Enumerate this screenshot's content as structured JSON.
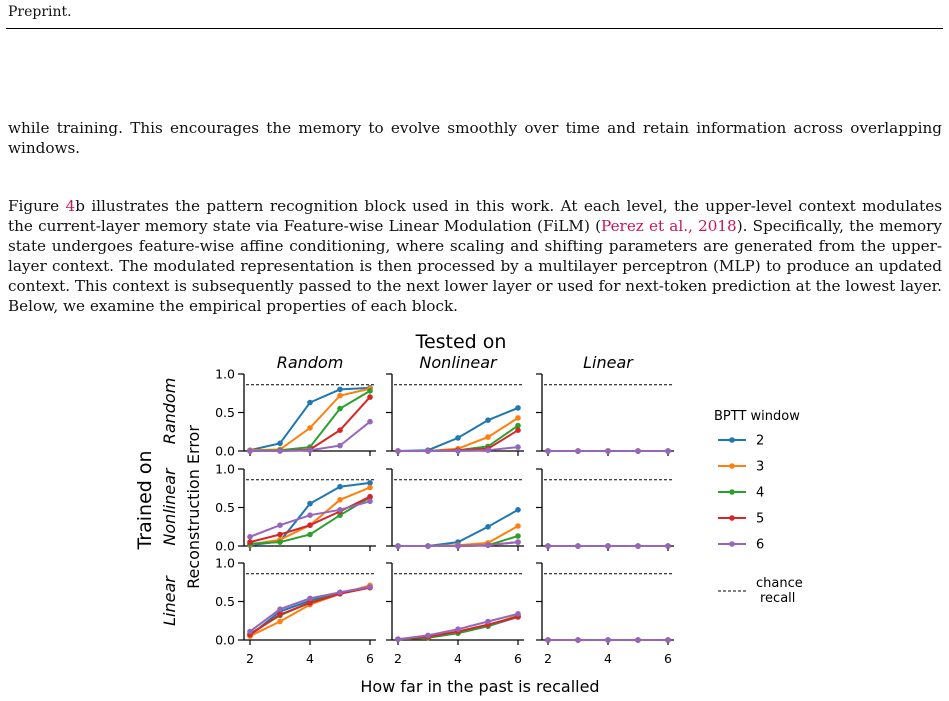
{
  "header": {
    "running_head": "Preprint."
  },
  "paragraphs": {
    "p1": "while training. This encourages the memory to evolve smoothly over time and retain information across overlapping windows.",
    "p2_a": "Figure ",
    "p2_ref": "4",
    "p2_b": "b illustrates the pattern recognition block used in this work. At each level, the upper-level context modulates the current-layer memory state via Feature-wise Linear Modulation (FiLM) (",
    "p2_cite": "Perez et al., 2018",
    "p2_c": "). Specifically, the memory state undergoes feature-wise affine conditioning, where scaling and shifting parameters are generated from the upper-layer context. The modulated representation is then processed by a multilayer perceptron (MLP) to produce an updated context. This context is subsequently passed to the next lower layer or used for next-token prediction at the lowest layer. Below, we examine the empirical properties of each block."
  },
  "figure": {
    "top_title": "Tested on",
    "left_title": "Trained on",
    "ylabel": "Reconstruction Error",
    "xlabel": "How far in the past is recalled",
    "legend_title": "BPTT window",
    "chance_label": "chance\nrecall"
  },
  "chart_data": {
    "type": "line",
    "columns": [
      "Random",
      "Nonlinear",
      "Linear"
    ],
    "rows": [
      "Random",
      "Nonlinear",
      "Linear"
    ],
    "x": [
      2,
      3,
      4,
      5,
      6
    ],
    "xticks": [
      2,
      4,
      6
    ],
    "yticks": [
      "0.0",
      "0.5",
      "1.0"
    ],
    "ylim": [
      0,
      1.0
    ],
    "chance_level": 0.86,
    "series_names": [
      "2",
      "3",
      "4",
      "5",
      "6"
    ],
    "colors": [
      "#1f77b4",
      "#ff7f0e",
      "#2ca02c",
      "#d62728",
      "#9467bd"
    ],
    "panels": [
      [
        [
          [
            0.01,
            0.1,
            0.63,
            0.8,
            0.82
          ],
          [
            0.01,
            0.02,
            0.3,
            0.72,
            0.81
          ],
          [
            0.0,
            0.01,
            0.05,
            0.55,
            0.78
          ],
          [
            0.0,
            0.0,
            0.02,
            0.27,
            0.7
          ],
          [
            0.0,
            0.0,
            0.01,
            0.07,
            0.38
          ]
        ],
        [
          [
            0.0,
            0.01,
            0.17,
            0.4,
            0.56
          ],
          [
            0.0,
            0.0,
            0.03,
            0.18,
            0.43
          ],
          [
            0.0,
            0.0,
            0.01,
            0.06,
            0.33
          ],
          [
            0.0,
            0.0,
            0.01,
            0.03,
            0.27
          ],
          [
            0.0,
            0.0,
            0.0,
            0.01,
            0.05
          ]
        ],
        [
          [
            0.0,
            0.0,
            0.0,
            0.0,
            0.0
          ],
          [
            0.0,
            0.0,
            0.0,
            0.0,
            0.0
          ],
          [
            0.0,
            0.0,
            0.0,
            0.0,
            0.0
          ],
          [
            0.0,
            0.0,
            0.0,
            0.0,
            0.0
          ],
          [
            0.0,
            0.0,
            0.0,
            0.0,
            0.0
          ]
        ]
      ],
      [
        [
          [
            0.01,
            0.06,
            0.55,
            0.77,
            0.82
          ],
          [
            0.02,
            0.08,
            0.27,
            0.6,
            0.76
          ],
          [
            0.03,
            0.05,
            0.15,
            0.4,
            0.63
          ],
          [
            0.05,
            0.15,
            0.27,
            0.45,
            0.64
          ],
          [
            0.12,
            0.27,
            0.4,
            0.47,
            0.58
          ]
        ],
        [
          [
            0.0,
            0.0,
            0.05,
            0.25,
            0.47
          ],
          [
            0.0,
            0.0,
            0.01,
            0.04,
            0.26
          ],
          [
            0.0,
            0.0,
            0.0,
            0.01,
            0.13
          ],
          [
            0.0,
            0.0,
            0.0,
            0.01,
            0.05
          ],
          [
            0.0,
            0.0,
            0.0,
            0.01,
            0.05
          ]
        ],
        [
          [
            0.0,
            0.0,
            0.0,
            0.0,
            0.0
          ],
          [
            0.0,
            0.0,
            0.0,
            0.0,
            0.0
          ],
          [
            0.0,
            0.0,
            0.0,
            0.0,
            0.0
          ],
          [
            0.0,
            0.0,
            0.0,
            0.0,
            0.0
          ],
          [
            0.0,
            0.0,
            0.0,
            0.0,
            0.0
          ]
        ]
      ],
      [
        [
          [
            0.06,
            0.37,
            0.51,
            0.62,
            0.69
          ],
          [
            0.05,
            0.24,
            0.46,
            0.6,
            0.71
          ],
          [
            0.08,
            0.32,
            0.49,
            0.61,
            0.68
          ],
          [
            0.07,
            0.33,
            0.48,
            0.6,
            0.68
          ],
          [
            0.11,
            0.4,
            0.54,
            0.62,
            0.69
          ]
        ],
        [
          [
            0.01,
            0.03,
            0.09,
            0.18,
            0.3
          ],
          [
            0.01,
            0.03,
            0.1,
            0.19,
            0.32
          ],
          [
            0.01,
            0.03,
            0.09,
            0.18,
            0.31
          ],
          [
            0.01,
            0.04,
            0.11,
            0.2,
            0.3
          ],
          [
            0.01,
            0.06,
            0.14,
            0.24,
            0.34
          ]
        ],
        [
          [
            0.0,
            0.0,
            0.0,
            0.0,
            0.0
          ],
          [
            0.0,
            0.0,
            0.0,
            0.0,
            0.0
          ],
          [
            0.0,
            0.0,
            0.0,
            0.0,
            0.0
          ],
          [
            0.0,
            0.0,
            0.0,
            0.0,
            0.0
          ],
          [
            0.0,
            0.0,
            0.0,
            0.0,
            0.0
          ]
        ]
      ]
    ]
  }
}
